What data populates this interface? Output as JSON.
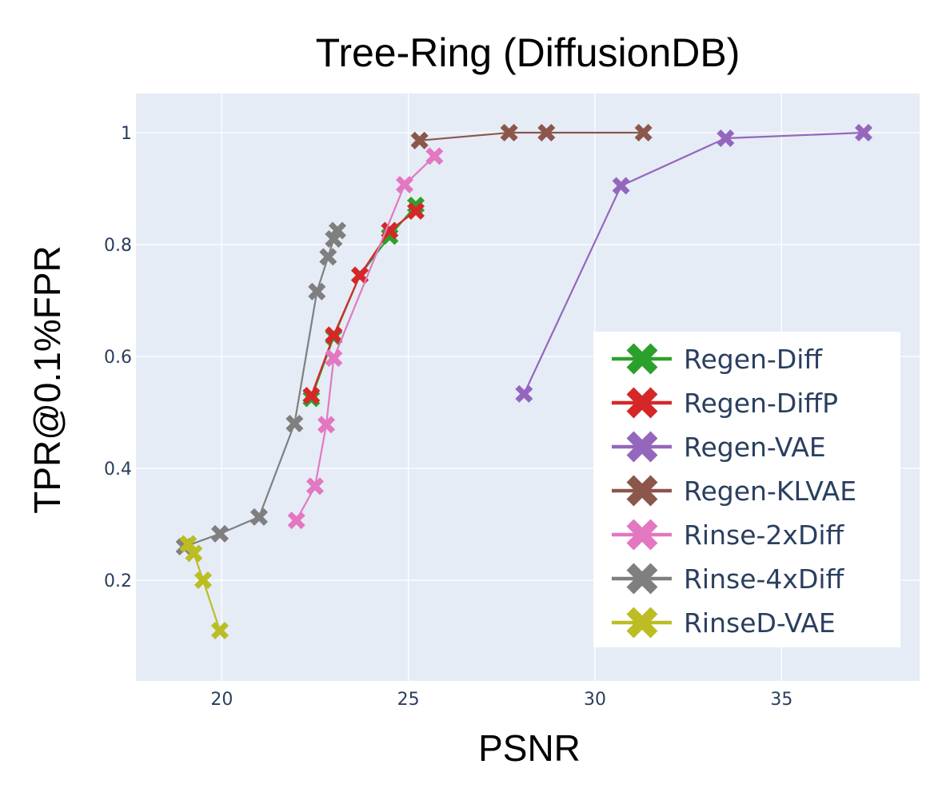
{
  "chart_data": {
    "type": "line",
    "title": "Tree-Ring (DiffusionDB)",
    "xlabel": "PSNR",
    "ylabel": "TPR@0.1%FPR",
    "xlim": [
      17.7,
      38.7
    ],
    "ylim": [
      0.02,
      1.07
    ],
    "xticks": [
      20,
      25,
      30,
      35
    ],
    "yticks": [
      0.2,
      0.4,
      0.6,
      0.8,
      1
    ],
    "ytick_labels": [
      "0.2",
      "0.4",
      "0.6",
      "0.8",
      "1"
    ],
    "grid": true,
    "legend_position": "bottom-right",
    "background_color": "#e5ecf6",
    "marker": "x",
    "series": [
      {
        "name": "Regen-Diff",
        "color": "#2ca02c",
        "x": [
          22.4,
          23.0,
          23.7,
          24.5,
          25.2
        ],
        "y": [
          0.525,
          0.635,
          0.745,
          0.815,
          0.87
        ]
      },
      {
        "name": "Regen-DiffP",
        "color": "#d62728",
        "x": [
          22.4,
          23.0,
          23.7,
          24.5,
          25.2
        ],
        "y": [
          0.53,
          0.638,
          0.745,
          0.825,
          0.86
        ]
      },
      {
        "name": "Regen-VAE",
        "color": "#9467bd",
        "x": [
          28.1,
          30.7,
          33.5,
          37.2
        ],
        "y": [
          0.533,
          0.905,
          0.99,
          1.0
        ]
      },
      {
        "name": "Regen-KLVAE",
        "color": "#8c564b",
        "x": [
          25.3,
          27.7,
          28.7,
          31.3
        ],
        "y": [
          0.986,
          1.0,
          1.0,
          1.0
        ]
      },
      {
        "name": "Rinse-2xDiff",
        "color": "#e377c2",
        "x": [
          22.0,
          22.5,
          22.8,
          23.0,
          24.9,
          25.7
        ],
        "y": [
          0.307,
          0.368,
          0.478,
          0.597,
          0.907,
          0.958
        ]
      },
      {
        "name": "Rinse-4xDiff",
        "color": "#7f7f7f",
        "x": [
          19.0,
          19.95,
          21.0,
          21.95,
          22.55,
          22.85,
          23.0,
          23.1
        ],
        "y": [
          0.26,
          0.283,
          0.313,
          0.48,
          0.716,
          0.778,
          0.81,
          0.825
        ]
      },
      {
        "name": "RinseD-VAE",
        "color": "#bcbd22",
        "x": [
          19.1,
          19.25,
          19.5,
          19.95
        ],
        "y": [
          0.265,
          0.248,
          0.2,
          0.11
        ]
      }
    ]
  }
}
